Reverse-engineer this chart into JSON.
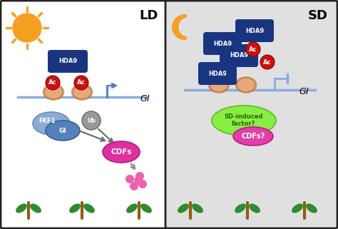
{
  "ld_bg": "#ffffff",
  "sd_bg": "#e0e0e0",
  "panel_border": "#222222",
  "ld_label": "LD",
  "sd_label": "SD",
  "hda9_color": "#1a3580",
  "hda9_text": "HDA9",
  "ac_color": "#cc1111",
  "ac_text": "Ac",
  "histone_color": "#e8a87c",
  "histone_ring": "#c07840",
  "chromatin_line": "#8aabe0",
  "arrow_color": "#4a7abf",
  "sun_color": "#f5a020",
  "moon_color": "#f5a020",
  "fkf1_color": "#8faad0",
  "gi_prot_color": "#5580b8",
  "ub_color": "#999999",
  "cdfs_color": "#e030a0",
  "pink_dots_color": "#f060b0",
  "plant_green": "#2e8b2e",
  "plant_stem": "#8B6010",
  "sd_induced_color": "#88ee44",
  "sd_induced_text": "#2a6600",
  "cdfs_q_color": "#e040a8",
  "dashed_arrow_color": "#1a3580",
  "inhibit_color": "#8aabe0",
  "gi_italic": "GI"
}
